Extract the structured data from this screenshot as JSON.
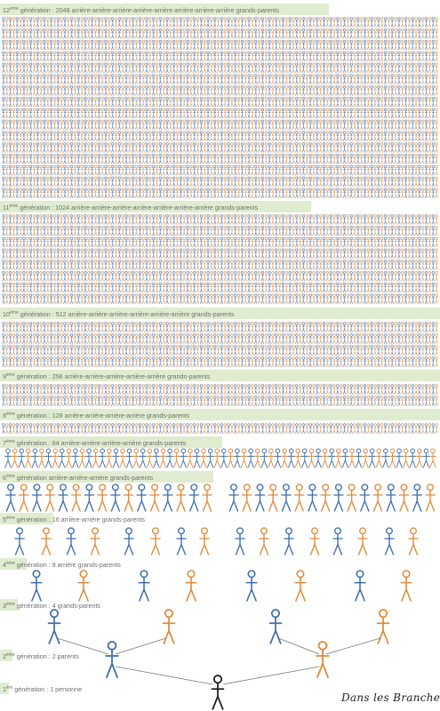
{
  "colors": {
    "blue": "#3f6fae",
    "orange": "#e08a3c",
    "black": "#1a1a1a",
    "band": "#dfeccf",
    "label": "#6f6f6f",
    "line": "#777777"
  },
  "brand": "Dans les Branches",
  "generations": [
    {
      "n": 12,
      "sup": "ème",
      "rest": " génération : 2048 arrière-arrière-arrière-arrière-arrière-arrière-arrière-arrière grands-parents",
      "count": 2048
    },
    {
      "n": 11,
      "sup": "ème",
      "rest": " génération : 1024 arrière-arrière-arrière-arrière-arrière-arrière-arrière grands-parents",
      "count": 1024
    },
    {
      "n": 10,
      "sup": "ème",
      "rest": " génération : 512 arrière-arrière-arrière-arrière-arrière-arrière grands-parents",
      "count": 512
    },
    {
      "n": 9,
      "sup": "ème",
      "rest": " génération : 256 arrière-arrière-arrière-arrière-arrière grands-parents",
      "count": 256
    },
    {
      "n": 8,
      "sup": "ème",
      "rest": " génération : 128 arrière-arrière-arrière-arrière grands-parents",
      "count": 128
    },
    {
      "n": 7,
      "sup": "ème",
      "rest": " génération : 64 arrière-arrière-arrière-arrière grands-parents",
      "count": 64
    },
    {
      "n": 6,
      "sup": "ème",
      "rest": " génération arrière-arrière-arrière grands-parents",
      "count": 32
    },
    {
      "n": 5,
      "sup": "ème",
      "rest": " génération : 16 arrière-arrière grands-parents",
      "count": 16
    },
    {
      "n": 4,
      "sup": "ème",
      "rest": " génération : 8 arrière grands-parents",
      "count": 8
    },
    {
      "n": 3,
      "sup": "ème",
      "rest": " génération : 4 grands-parents",
      "count": 4
    },
    {
      "n": 2,
      "sup": "ème",
      "rest": " génération : 2 parents",
      "count": 2
    },
    {
      "n": 1,
      "sup": "ère",
      "rest": " génération : 1 personne",
      "count": 1
    }
  ]
}
